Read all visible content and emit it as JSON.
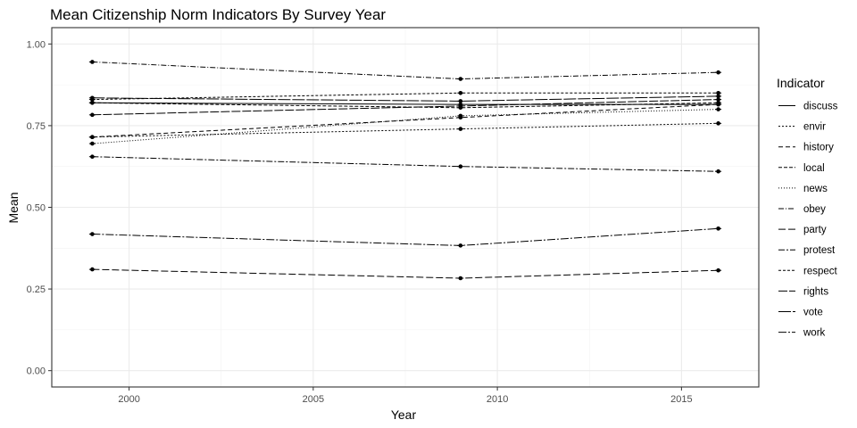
{
  "chart_data": {
    "type": "line",
    "title": "Mean Citizenship Norm Indicators By Survey Year",
    "xlabel": "Year",
    "ylabel": "Mean",
    "x": [
      1999,
      2009,
      2016
    ],
    "xlim": [
      1997.9,
      2017.1
    ],
    "ylim": [
      -0.05,
      1.05
    ],
    "xticks": [
      2000,
      2005,
      2010,
      2015
    ],
    "yticks": [
      0.0,
      0.25,
      0.5,
      0.75,
      1.0
    ],
    "xtick_labels": [
      "2000",
      "2005",
      "2010",
      "2015"
    ],
    "ytick_labels": [
      "0.00",
      "0.25",
      "0.50",
      "0.75",
      "1.00"
    ],
    "grid": true,
    "legend": {
      "title": "Indicator",
      "position": "right"
    },
    "series": [
      {
        "name": "discuss",
        "values": [
          0.82,
          0.815,
          0.815
        ],
        "dash": ""
      },
      {
        "name": "envir",
        "values": [
          0.715,
          0.74,
          0.757
        ],
        "dash": "2,2"
      },
      {
        "name": "history",
        "values": [
          0.715,
          0.775,
          0.815
        ],
        "dash": "5,3"
      },
      {
        "name": "local",
        "values": [
          0.82,
          0.805,
          0.82
        ],
        "dash": "4,2"
      },
      {
        "name": "news",
        "values": [
          0.695,
          0.78,
          0.8
        ],
        "dash": "1,2"
      },
      {
        "name": "obey",
        "values": [
          0.945,
          0.893,
          0.913
        ],
        "dash": "6,2,1,2"
      },
      {
        "name": "party",
        "values": [
          0.31,
          0.283,
          0.307
        ],
        "dash": "8,3"
      },
      {
        "name": "protest",
        "values": [
          0.655,
          0.625,
          0.61
        ],
        "dash": "7,2,2,2"
      },
      {
        "name": "respect",
        "values": [
          0.83,
          0.85,
          0.85
        ],
        "dash": "3,2"
      },
      {
        "name": "rights",
        "values": [
          0.783,
          0.81,
          0.83
        ],
        "dash": "10,2"
      },
      {
        "name": "vote",
        "values": [
          0.835,
          0.825,
          0.84
        ],
        "dash": "14,2"
      },
      {
        "name": "work",
        "values": [
          0.418,
          0.383,
          0.435
        ],
        "dash": "9,2,2,2"
      }
    ]
  }
}
